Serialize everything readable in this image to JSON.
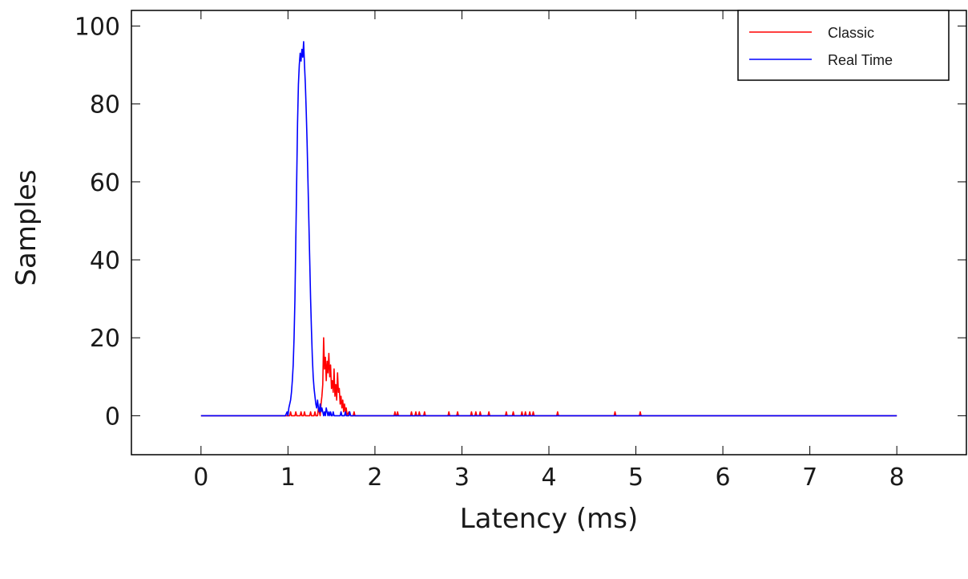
{
  "chart_data": {
    "type": "line",
    "xlabel": "Latency (ms)",
    "ylabel": "Samples",
    "xlim": [
      -0.8,
      8.8
    ],
    "ylim": [
      -10,
      104
    ],
    "x_ticks": [
      0,
      1,
      2,
      3,
      4,
      5,
      6,
      7,
      8
    ],
    "y_ticks": [
      0,
      20,
      40,
      60,
      80,
      100
    ],
    "grid": false,
    "legend_position": "top-right",
    "series": [
      {
        "name": "Classic",
        "color": "#ff0000",
        "x": [
          0,
          0.95,
          1.02,
          1.03,
          1.04,
          1.08,
          1.09,
          1.1,
          1.14,
          1.15,
          1.16,
          1.18,
          1.19,
          1.2,
          1.25,
          1.26,
          1.27,
          1.3,
          1.31,
          1.32,
          1.34,
          1.35,
          1.37,
          1.38,
          1.39,
          1.4,
          1.41,
          1.42,
          1.43,
          1.44,
          1.45,
          1.46,
          1.47,
          1.48,
          1.49,
          1.5,
          1.51,
          1.52,
          1.53,
          1.54,
          1.55,
          1.56,
          1.57,
          1.58,
          1.59,
          1.6,
          1.61,
          1.62,
          1.63,
          1.64,
          1.65,
          1.66,
          1.67,
          1.68,
          1.7,
          1.72,
          1.75,
          1.76,
          1.77,
          2.22,
          2.23,
          2.24,
          2.25,
          2.26,
          2.27,
          2.41,
          2.42,
          2.43,
          2.46,
          2.47,
          2.48,
          2.5,
          2.51,
          2.52,
          2.56,
          2.57,
          2.58,
          2.84,
          2.85,
          2.86,
          2.94,
          2.95,
          2.96,
          3.1,
          3.11,
          3.12,
          3.15,
          3.16,
          3.17,
          3.2,
          3.21,
          3.22,
          3.3,
          3.31,
          3.32,
          3.5,
          3.51,
          3.52,
          3.58,
          3.59,
          3.6,
          3.68,
          3.69,
          3.7,
          3.72,
          3.73,
          3.74,
          3.77,
          3.78,
          3.79,
          3.81,
          3.82,
          3.83,
          4.09,
          4.1,
          4.11,
          4.75,
          4.76,
          4.77,
          5.04,
          5.05,
          5.06,
          8
        ],
        "y": [
          0,
          0,
          0,
          1,
          0,
          0,
          1,
          0,
          0,
          1,
          0,
          0,
          1,
          0,
          0,
          1,
          0,
          0,
          1,
          0,
          0,
          2,
          0,
          3,
          5,
          8,
          20,
          12,
          15,
          9,
          14,
          11,
          16,
          10,
          13,
          7,
          9,
          6,
          12,
          5,
          8,
          4,
          11,
          6,
          7,
          3,
          5,
          2,
          4,
          1,
          3,
          1,
          2,
          0,
          1,
          0,
          0,
          1,
          0,
          0,
          1,
          0,
          0,
          1,
          0,
          0,
          1,
          0,
          0,
          1,
          0,
          0,
          1,
          0,
          0,
          1,
          0,
          0,
          1,
          0,
          0,
          1,
          0,
          0,
          1,
          0,
          0,
          1,
          0,
          0,
          1,
          0,
          0,
          1,
          0,
          0,
          1,
          0,
          0,
          1,
          0,
          0,
          1,
          0,
          0,
          1,
          0,
          0,
          1,
          0,
          0,
          1,
          0,
          0,
          1,
          0,
          0,
          1,
          0,
          0,
          1,
          0,
          0
        ]
      },
      {
        "name": "Real Time",
        "color": "#0000ff",
        "x": [
          0,
          0.97,
          0.99,
          1.0,
          1.01,
          1.02,
          1.03,
          1.04,
          1.05,
          1.06,
          1.07,
          1.08,
          1.09,
          1.1,
          1.11,
          1.12,
          1.13,
          1.14,
          1.15,
          1.16,
          1.17,
          1.18,
          1.19,
          1.2,
          1.21,
          1.22,
          1.23,
          1.24,
          1.25,
          1.26,
          1.27,
          1.28,
          1.29,
          1.3,
          1.31,
          1.32,
          1.33,
          1.34,
          1.35,
          1.36,
          1.37,
          1.38,
          1.39,
          1.4,
          1.41,
          1.42,
          1.43,
          1.44,
          1.45,
          1.46,
          1.47,
          1.48,
          1.49,
          1.5,
          1.51,
          1.52,
          1.53,
          1.55,
          1.6,
          1.61,
          1.62,
          1.65,
          1.66,
          1.67,
          1.7,
          1.71,
          1.72,
          1.75,
          8
        ],
        "y": [
          0,
          0,
          1,
          0,
          2,
          3,
          4,
          6,
          9,
          13,
          20,
          30,
          45,
          60,
          75,
          85,
          90,
          93,
          91,
          94,
          92,
          96,
          90,
          85,
          78,
          70,
          60,
          50,
          40,
          30,
          22,
          15,
          10,
          7,
          5,
          3,
          2,
          4,
          2,
          1,
          3,
          1,
          2,
          1,
          0,
          1,
          0,
          2,
          1,
          0,
          1,
          0,
          1,
          0,
          0,
          1,
          0,
          0,
          0,
          1,
          0,
          0,
          1,
          0,
          0,
          1,
          0,
          0,
          0
        ]
      }
    ]
  }
}
